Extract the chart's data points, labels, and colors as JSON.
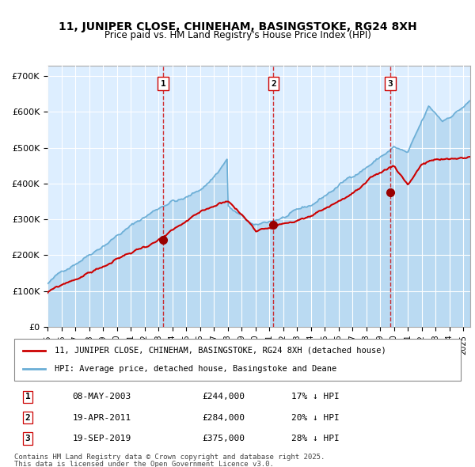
{
  "title": "11, JUNIPER CLOSE, CHINEHAM, BASINGSTOKE, RG24 8XH",
  "subtitle": "Price paid vs. HM Land Registry's House Price Index (HPI)",
  "legend_line1": "11, JUNIPER CLOSE, CHINEHAM, BASINGSTOKE, RG24 8XH (detached house)",
  "legend_line2": "HPI: Average price, detached house, Basingstoke and Deane",
  "transactions": [
    {
      "num": 1,
      "date": "08-MAY-2003",
      "price": 244000,
      "pct": "17%",
      "year": 2003.35
    },
    {
      "num": 2,
      "date": "19-APR-2011",
      "price": 284000,
      "pct": "20%",
      "year": 2011.3
    },
    {
      "num": 3,
      "date": "19-SEP-2019",
      "price": 375000,
      "pct": "28%",
      "year": 2019.72
    }
  ],
  "footer1": "Contains HM Land Registry data © Crown copyright and database right 2025.",
  "footer2": "This data is licensed under the Open Government Licence v3.0.",
  "hpi_color": "#6baed6",
  "price_color": "#cc0000",
  "marker_color": "#990000",
  "vline_color": "#cc0000",
  "background_color": "#ddeeff",
  "ylim": [
    0,
    730000
  ],
  "yticks": [
    0,
    100000,
    200000,
    300000,
    400000,
    500000,
    600000,
    700000
  ],
  "ytick_labels": [
    "£0",
    "£100K",
    "£200K",
    "£300K",
    "£400K",
    "£500K",
    "£600K",
    "£700K"
  ],
  "xstart": 1995,
  "xend": 2025.5
}
